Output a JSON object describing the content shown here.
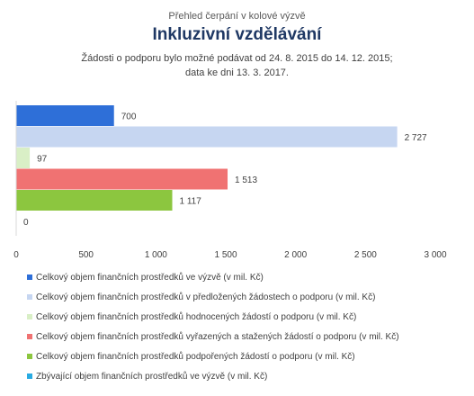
{
  "header": {
    "supertitle": "Přehled čerpání v kolové výzvě",
    "title": "Inkluzivní vzdělávání",
    "subtitle_line1": "Žádosti o podporu bylo možné  podávat od 24. 8. 2015 do 14. 12. 2015;",
    "subtitle_line2": "data ke dni 13. 3. 2017."
  },
  "chart_data": {
    "type": "bar",
    "orientation": "horizontal",
    "series": [
      {
        "name": "Celkový objem finančních prostředků ve výzvě (v mil. Kč)",
        "value": 700,
        "label": "700",
        "color": "#2E6FD8"
      },
      {
        "name": "Celkový objem finančních prostředků v předložených žádostech o podporu (v mil. Kč)",
        "value": 2727,
        "label": "2 727",
        "color": "#C6D6F1"
      },
      {
        "name": "Celkový objem finančních prostředků hodnocených žádostí o podporu (v mil. Kč)",
        "value": 97,
        "label": "97",
        "color": "#D9EFC6"
      },
      {
        "name": "Celkový objem finančních prostředků vyřazených a stažených žádostí o podporu (v mil. Kč)",
        "value": 1513,
        "label": "1 513",
        "color": "#F07272"
      },
      {
        "name": "Celkový objem finančních prostředků podpořených žádostí o podporu (v mil. Kč)",
        "value": 1117,
        "label": "1 117",
        "color": "#8CC63F"
      },
      {
        "name": "Zbývající objem finančních prostředků ve výzvě (v mil. Kč)",
        "value": 0,
        "label": "0",
        "color": "#29ABE2"
      }
    ],
    "xlim": [
      0,
      3000
    ],
    "xticks": [
      0,
      500,
      1000,
      1500,
      2000,
      2500,
      3000
    ],
    "xtick_labels": [
      "0",
      "500",
      "1 000",
      "1 500",
      "2 000",
      "2 500",
      "3 000"
    ],
    "grid": false,
    "legend_position": "bottom"
  }
}
